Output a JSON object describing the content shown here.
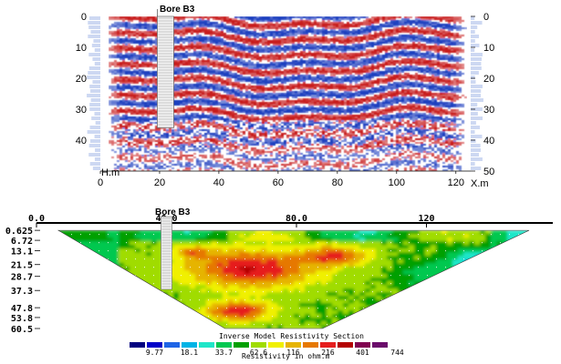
{
  "chart_data": [
    {
      "type": "heatmap",
      "title": "",
      "annotation": "Bore B3",
      "bore_x": 22,
      "xlabel": "X.m",
      "ylabel": "H.m",
      "x_ticks": [
        0,
        20,
        40,
        60,
        80,
        100,
        120
      ],
      "y_ticks": [
        0,
        10,
        20,
        30,
        40,
        50
      ],
      "y_tick_labels_left": [
        "0",
        "10",
        "20",
        "30",
        "40"
      ],
      "y_tick_labels_right": [
        "0",
        "10",
        "20",
        "30",
        "40",
        "50"
      ],
      "x_tick_labels": [
        "0",
        "20",
        "40",
        "60",
        "80",
        "100",
        "120"
      ],
      "xlim": [
        0,
        125
      ],
      "ylim": [
        0,
        50
      ],
      "colors": {
        "positive": "#c81e1e",
        "negative": "#1f3fbf",
        "neutral": "#ffffff"
      }
    },
    {
      "type": "heatmap",
      "title": "Inverse Model Resistivity Section",
      "annotation": "Bore B3",
      "bore_x": 40,
      "colorbar_label": "Resistivity in ohm.m",
      "x_tick_labels": [
        "0.0",
        "40.0",
        "80.0",
        "120"
      ],
      "x_ticks": [
        0,
        40,
        80,
        120
      ],
      "xlim": [
        0,
        160
      ],
      "depth_labels": [
        "0.625",
        "6.72",
        "13.1",
        "21.5",
        "28.7",
        "37.3",
        "47.8",
        "53.8",
        "60.5"
      ],
      "depths": [
        0.625,
        6.72,
        13.1,
        21.5,
        28.7,
        37.3,
        47.8,
        53.8,
        60.5
      ],
      "colorbar_values": [
        "9.77",
        "18.1",
        "33.7",
        "62.6",
        "116",
        "216",
        "401",
        "744"
      ],
      "colorbar_colors": [
        "#000080",
        "#0000c8",
        "#1e64e6",
        "#00b4e6",
        "#1ee6c8",
        "#00c850",
        "#00a000",
        "#a0dc00",
        "#f0f000",
        "#e6b400",
        "#e67800",
        "#e61e1e",
        "#b40000",
        "#800050",
        "#6a0a6a"
      ]
    }
  ]
}
